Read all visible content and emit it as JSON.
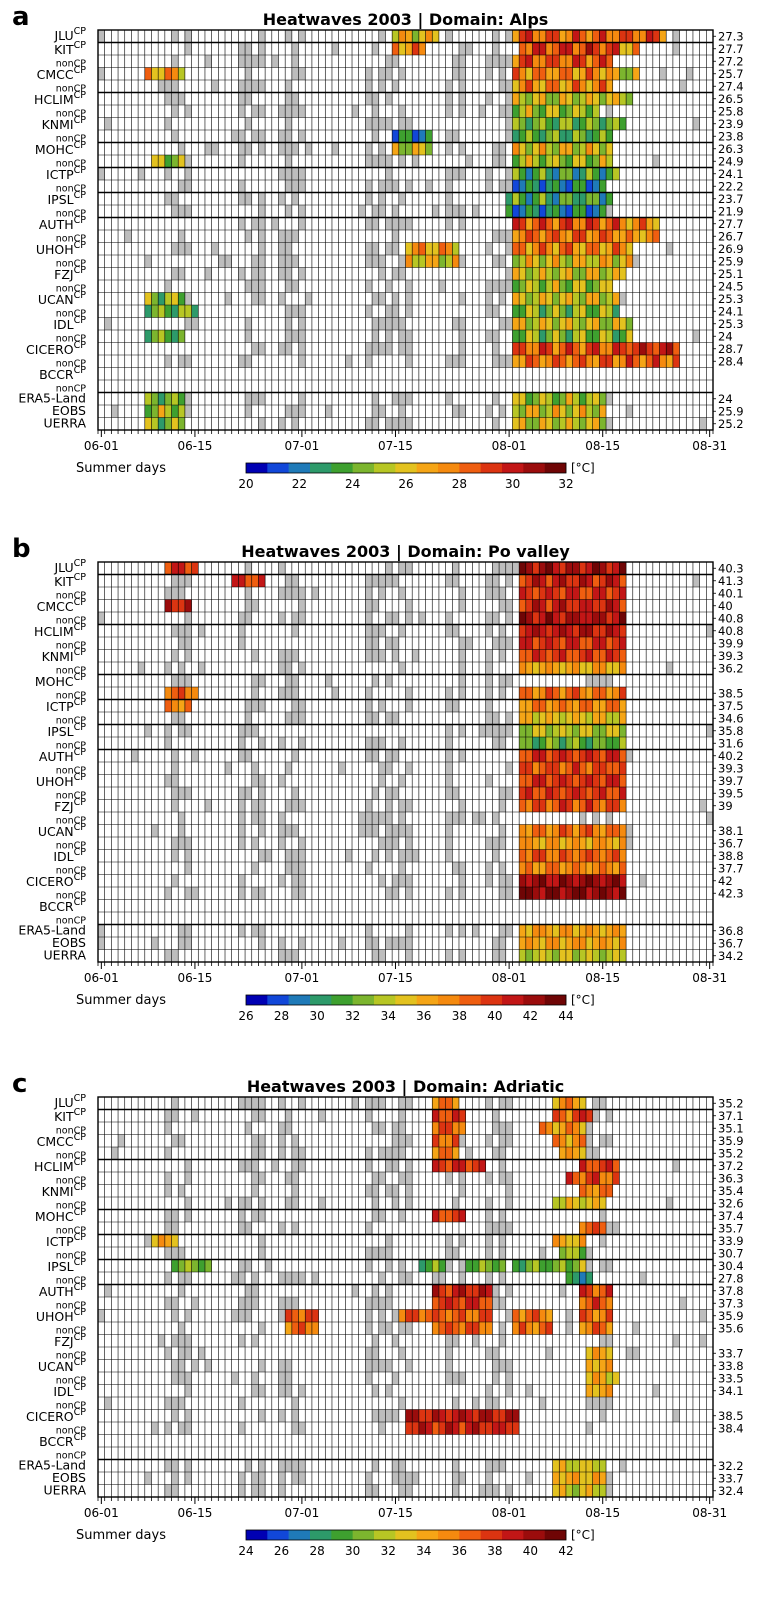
{
  "figure": {
    "colorbar_unit": "[°C]",
    "x_title": "Summer days",
    "x_ticks": [
      "06-01",
      "06-15",
      "07-01",
      "07-15",
      "08-01",
      "08-15",
      "08-31"
    ],
    "rows": [
      {
        "name": "JLU",
        "sup": "CP",
        "sub": ""
      },
      {
        "name": "KIT",
        "sup": "CP",
        "sub": "nonCP"
      },
      {
        "name": "CMCC",
        "sup": "CP",
        "sub": "nonCP"
      },
      {
        "name": "HCLIM",
        "sup": "CP",
        "sub": "nonCP"
      },
      {
        "name": "KNMI",
        "sup": "CP",
        "sub": "nonCP"
      },
      {
        "name": "MOHC",
        "sup": "CP",
        "sub": "nonCP"
      },
      {
        "name": "ICTP",
        "sup": "CP",
        "sub": "nonCP"
      },
      {
        "name": "IPSL",
        "sup": "CP",
        "sub": "nonCP"
      },
      {
        "name": "AUTH",
        "sup": "CP",
        "sub": "nonCP"
      },
      {
        "name": "UHOH",
        "sup": "CP",
        "sub": "nonCP"
      },
      {
        "name": "FZJ",
        "sup": "CP",
        "sub": "nonCP"
      },
      {
        "name": "UCAN",
        "sup": "CP",
        "sub": "nonCP"
      },
      {
        "name": "IDL",
        "sup": "CP",
        "sub": "nonCP"
      },
      {
        "name": "CICERO",
        "sup": "CP",
        "sub": "nonCP"
      },
      {
        "name": "BCCR",
        "sup": "CP",
        "sub": "nonCP"
      },
      {
        "name": "ERA5-Land",
        "sup": "",
        "sub": ""
      },
      {
        "name": "EOBS",
        "sup": "",
        "sub": ""
      },
      {
        "name": "UERRA",
        "sup": "",
        "sub": ""
      }
    ]
  },
  "chart_data": [
    {
      "type": "heatmap",
      "panel_letter": "a",
      "title": "Heatwaves 2003 | Domain: Alps",
      "colorbar_ticks": [
        "20",
        "22",
        "24",
        "26",
        "28",
        "30",
        "32"
      ],
      "vmin": 20,
      "vmax": 32,
      "right_values": [
        "27.3",
        "27.7",
        "27.2",
        "25.7",
        "27.4",
        "26.5",
        "25.8",
        "23.9",
        "23.8",
        "26.3",
        "24.9",
        "24.1",
        "22.2",
        "23.7",
        "21.9",
        "27.7",
        "26.7",
        "26.9",
        "25.9",
        "25.1",
        "24.5",
        "25.3",
        "24.1",
        "25.3",
        "24",
        "28.7",
        "28.4",
        "",
        "",
        "24",
        "25.9",
        "25.2"
      ],
      "events": [
        {
          "row": 0,
          "start": 44,
          "end": 50,
          "value": 26
        },
        {
          "row": 0,
          "start": 68,
          "end": 73,
          "value": 25.5
        },
        {
          "row": 0,
          "start": 62,
          "end": 84,
          "value": 28.5
        },
        {
          "row": 1,
          "start": 44,
          "end": 48,
          "value": 27.5
        },
        {
          "row": 1,
          "start": 76,
          "end": 80,
          "value": 27
        },
        {
          "row": 1,
          "start": 63,
          "end": 77,
          "value": 29
        },
        {
          "row": 2,
          "start": 62,
          "end": 76,
          "value": 28.5
        },
        {
          "row": 3,
          "start": 7,
          "end": 12,
          "value": 27
        },
        {
          "row": 3,
          "start": 75,
          "end": 80,
          "value": 25.5
        },
        {
          "row": 3,
          "start": 62,
          "end": 76,
          "value": 27.5
        },
        {
          "row": 4,
          "start": 62,
          "end": 76,
          "value": 27.5
        },
        {
          "row": 5,
          "start": 69,
          "end": 75,
          "value": 25.5
        },
        {
          "row": 5,
          "start": 62,
          "end": 79,
          "value": 25.5
        },
        {
          "row": 6,
          "start": 62,
          "end": 74,
          "value": 25
        },
        {
          "row": 7,
          "start": 62,
          "end": 78,
          "value": 24
        },
        {
          "row": 8,
          "start": 44,
          "end": 49,
          "value": 22.5
        },
        {
          "row": 8,
          "start": 62,
          "end": 76,
          "value": 24
        },
        {
          "row": 9,
          "start": 44,
          "end": 49,
          "value": 25.5
        },
        {
          "row": 9,
          "start": 69,
          "end": 74,
          "value": 25.5
        },
        {
          "row": 9,
          "start": 62,
          "end": 76,
          "value": 26
        },
        {
          "row": 10,
          "start": 8,
          "end": 12,
          "value": 25
        },
        {
          "row": 10,
          "start": 62,
          "end": 76,
          "value": 25
        },
        {
          "row": 11,
          "start": 62,
          "end": 77,
          "value": 23.5
        },
        {
          "row": 12,
          "start": 62,
          "end": 75,
          "value": 22.5
        },
        {
          "row": 13,
          "start": 67,
          "end": 73,
          "value": 22.5
        },
        {
          "row": 13,
          "start": 61,
          "end": 76,
          "value": 23.5
        },
        {
          "row": 14,
          "start": 61,
          "end": 75,
          "value": 22.5
        },
        {
          "row": 15,
          "start": 75,
          "end": 83,
          "value": 27.5
        },
        {
          "row": 15,
          "start": 62,
          "end": 77,
          "value": 28.5
        },
        {
          "row": 16,
          "start": 75,
          "end": 83,
          "value": 27
        },
        {
          "row": 16,
          "start": 62,
          "end": 77,
          "value": 28
        },
        {
          "row": 17,
          "start": 46,
          "end": 53,
          "value": 27
        },
        {
          "row": 17,
          "start": 67,
          "end": 76,
          "value": 27.5
        },
        {
          "row": 17,
          "start": 62,
          "end": 79,
          "value": 27.5
        },
        {
          "row": 18,
          "start": 46,
          "end": 53,
          "value": 26
        },
        {
          "row": 18,
          "start": 67,
          "end": 76,
          "value": 26.5
        },
        {
          "row": 18,
          "start": 62,
          "end": 79,
          "value": 26
        },
        {
          "row": 19,
          "start": 67,
          "end": 76,
          "value": 26.5
        },
        {
          "row": 19,
          "start": 62,
          "end": 78,
          "value": 25.5
        },
        {
          "row": 20,
          "start": 67,
          "end": 76,
          "value": 25
        },
        {
          "row": 20,
          "start": 62,
          "end": 76,
          "value": 25
        },
        {
          "row": 21,
          "start": 7,
          "end": 12,
          "value": 24.5
        },
        {
          "row": 21,
          "start": 62,
          "end": 77,
          "value": 25.5
        },
        {
          "row": 22,
          "start": 7,
          "end": 14,
          "value": 24
        },
        {
          "row": 22,
          "start": 62,
          "end": 77,
          "value": 24.5
        },
        {
          "row": 23,
          "start": 62,
          "end": 79,
          "value": 25.5
        },
        {
          "row": 24,
          "start": 7,
          "end": 12,
          "value": 24
        },
        {
          "row": 24,
          "start": 62,
          "end": 79,
          "value": 24.5
        },
        {
          "row": 25,
          "start": 69,
          "end": 86,
          "value": 29.5
        },
        {
          "row": 25,
          "start": 62,
          "end": 78,
          "value": 28.5
        },
        {
          "row": 26,
          "start": 69,
          "end": 86,
          "value": 28.5
        },
        {
          "row": 26,
          "start": 62,
          "end": 78,
          "value": 28
        },
        {
          "row": 29,
          "start": 7,
          "end": 12,
          "value": 24
        },
        {
          "row": 29,
          "start": 62,
          "end": 75,
          "value": 25
        },
        {
          "row": 30,
          "start": 7,
          "end": 12,
          "value": 25
        },
        {
          "row": 30,
          "start": 62,
          "end": 75,
          "value": 26
        },
        {
          "row": 31,
          "start": 7,
          "end": 12,
          "value": 24.5
        },
        {
          "row": 31,
          "start": 62,
          "end": 75,
          "value": 25.5
        }
      ]
    },
    {
      "type": "heatmap",
      "panel_letter": "b",
      "title": "Heatwaves 2003 | Domain: Po valley",
      "colorbar_ticks": [
        "26",
        "28",
        "30",
        "32",
        "34",
        "36",
        "38",
        "40",
        "42",
        "44"
      ],
      "vmin": 26,
      "vmax": 44,
      "right_values": [
        "40.3",
        "41.3",
        "40.1",
        "40",
        "40.8",
        "40.8",
        "39.9",
        "39.3",
        "36.2",
        "",
        "38.5",
        "37.5",
        "34.6",
        "35.8",
        "31.6",
        "40.2",
        "39.3",
        "39.7",
        "39.5",
        "39",
        "",
        "38.1",
        "36.7",
        "38.8",
        "37.7",
        "42",
        "42.3",
        "",
        "",
        "36.8",
        "36.7",
        "34.2"
      ],
      "events": [
        {
          "row": 0,
          "start": 10,
          "end": 14,
          "value": 40
        },
        {
          "row": 0,
          "start": 63,
          "end": 78,
          "value": 41.5
        },
        {
          "row": 1,
          "start": 20,
          "end": 24,
          "value": 40
        },
        {
          "row": 1,
          "start": 72,
          "end": 76,
          "value": 42
        },
        {
          "row": 1,
          "start": 63,
          "end": 78,
          "value": 40.5
        },
        {
          "row": 2,
          "start": 63,
          "end": 78,
          "value": 40
        },
        {
          "row": 3,
          "start": 10,
          "end": 13,
          "value": 40.5
        },
        {
          "row": 3,
          "start": 63,
          "end": 78,
          "value": 40.5
        },
        {
          "row": 4,
          "start": 63,
          "end": 78,
          "value": 41.5
        },
        {
          "row": 5,
          "start": 63,
          "end": 78,
          "value": 41
        },
        {
          "row": 6,
          "start": 63,
          "end": 78,
          "value": 40
        },
        {
          "row": 7,
          "start": 63,
          "end": 78,
          "value": 39.5
        },
        {
          "row": 8,
          "start": 63,
          "end": 78,
          "value": 36
        },
        {
          "row": 10,
          "start": 10,
          "end": 14,
          "value": 38.5
        },
        {
          "row": 10,
          "start": 63,
          "end": 78,
          "value": 38
        },
        {
          "row": 11,
          "start": 10,
          "end": 13,
          "value": 37.5
        },
        {
          "row": 11,
          "start": 63,
          "end": 78,
          "value": 37.5
        },
        {
          "row": 12,
          "start": 63,
          "end": 78,
          "value": 35
        },
        {
          "row": 13,
          "start": 63,
          "end": 78,
          "value": 34
        },
        {
          "row": 14,
          "start": 63,
          "end": 78,
          "value": 32
        },
        {
          "row": 15,
          "start": 63,
          "end": 78,
          "value": 40
        },
        {
          "row": 16,
          "start": 63,
          "end": 78,
          "value": 39
        },
        {
          "row": 17,
          "start": 63,
          "end": 78,
          "value": 40
        },
        {
          "row": 18,
          "start": 63,
          "end": 78,
          "value": 39.5
        },
        {
          "row": 19,
          "start": 63,
          "end": 78,
          "value": 39
        },
        {
          "row": 21,
          "start": 63,
          "end": 78,
          "value": 38
        },
        {
          "row": 22,
          "start": 63,
          "end": 78,
          "value": 36.5
        },
        {
          "row": 23,
          "start": 63,
          "end": 78,
          "value": 38.5
        },
        {
          "row": 24,
          "start": 63,
          "end": 78,
          "value": 37.5
        },
        {
          "row": 25,
          "start": 63,
          "end": 78,
          "value": 42
        },
        {
          "row": 26,
          "start": 63,
          "end": 78,
          "value": 42.5
        },
        {
          "row": 29,
          "start": 63,
          "end": 78,
          "value": 36.5
        },
        {
          "row": 30,
          "start": 63,
          "end": 78,
          "value": 36.5
        },
        {
          "row": 31,
          "start": 63,
          "end": 78,
          "value": 34
        }
      ]
    },
    {
      "type": "heatmap",
      "panel_letter": "c",
      "title": "Heatwaves 2003 | Domain: Adriatic",
      "colorbar_ticks": [
        "24",
        "26",
        "28",
        "30",
        "32",
        "34",
        "36",
        "38",
        "40",
        "42"
      ],
      "vmin": 24,
      "vmax": 42,
      "right_values": [
        "35.2",
        "37.1",
        "35.1",
        "35.9",
        "35.2",
        "37.2",
        "36.3",
        "35.4",
        "32.6",
        "37.4",
        "35.7",
        "33.9",
        "30.7",
        "30.4",
        "27.8",
        "37.8",
        "37.3",
        "35.9",
        "35.6",
        "",
        "33.7",
        "33.8",
        "33.5",
        "34.1",
        "",
        "38.5",
        "38.4",
        "",
        "",
        "32.2",
        "33.7",
        "32.4"
      ],
      "events": [
        {
          "row": 0,
          "start": 68,
          "end": 72,
          "value": 35
        },
        {
          "row": 0,
          "start": 50,
          "end": 53,
          "value": 35.5
        },
        {
          "row": 1,
          "start": 50,
          "end": 54,
          "value": 37.5
        },
        {
          "row": 1,
          "start": 68,
          "end": 72,
          "value": 36
        },
        {
          "row": 1,
          "start": 71,
          "end": 73,
          "value": 38
        },
        {
          "row": 2,
          "start": 50,
          "end": 54,
          "value": 36.5
        },
        {
          "row": 2,
          "start": 66,
          "end": 72,
          "value": 35
        },
        {
          "row": 3,
          "start": 50,
          "end": 53,
          "value": 36.5
        },
        {
          "row": 3,
          "start": 68,
          "end": 72,
          "value": 35
        },
        {
          "row": 4,
          "start": 50,
          "end": 53,
          "value": 35.5
        },
        {
          "row": 4,
          "start": 69,
          "end": 72,
          "value": 34.5
        },
        {
          "row": 5,
          "start": 50,
          "end": 57,
          "value": 38
        },
        {
          "row": 5,
          "start": 72,
          "end": 77,
          "value": 37.5
        },
        {
          "row": 6,
          "start": 72,
          "end": 77,
          "value": 36.5
        },
        {
          "row": 6,
          "start": 70,
          "end": 74,
          "value": 37
        },
        {
          "row": 7,
          "start": 72,
          "end": 76,
          "value": 35.5
        },
        {
          "row": 8,
          "start": 68,
          "end": 75,
          "value": 33
        },
        {
          "row": 9,
          "start": 50,
          "end": 54,
          "value": 37.5
        },
        {
          "row": 10,
          "start": 72,
          "end": 75,
          "value": 36.5
        },
        {
          "row": 11,
          "start": 8,
          "end": 11,
          "value": 34
        },
        {
          "row": 11,
          "start": 68,
          "end": 72,
          "value": 34
        },
        {
          "row": 12,
          "start": 69,
          "end": 72,
          "value": 31
        },
        {
          "row": 13,
          "start": 11,
          "end": 16,
          "value": 30.5
        },
        {
          "row": 13,
          "start": 48,
          "end": 51,
          "value": 30
        },
        {
          "row": 13,
          "start": 55,
          "end": 60,
          "value": 30.5
        },
        {
          "row": 13,
          "start": 62,
          "end": 68,
          "value": 30
        },
        {
          "row": 13,
          "start": 69,
          "end": 72,
          "value": 31
        },
        {
          "row": 14,
          "start": 70,
          "end": 73,
          "value": 28
        },
        {
          "row": 15,
          "start": 50,
          "end": 58,
          "value": 38.5
        },
        {
          "row": 15,
          "start": 72,
          "end": 76,
          "value": 37
        },
        {
          "row": 16,
          "start": 50,
          "end": 58,
          "value": 38
        },
        {
          "row": 16,
          "start": 72,
          "end": 76,
          "value": 37
        },
        {
          "row": 17,
          "start": 28,
          "end": 32,
          "value": 36.5
        },
        {
          "row": 17,
          "start": 45,
          "end": 58,
          "value": 36.5
        },
        {
          "row": 17,
          "start": 62,
          "end": 67,
          "value": 36
        },
        {
          "row": 17,
          "start": 72,
          "end": 76,
          "value": 36
        },
        {
          "row": 18,
          "start": 28,
          "end": 32,
          "value": 36
        },
        {
          "row": 18,
          "start": 50,
          "end": 58,
          "value": 36.5
        },
        {
          "row": 18,
          "start": 62,
          "end": 67,
          "value": 36
        },
        {
          "row": 18,
          "start": 72,
          "end": 76,
          "value": 36
        },
        {
          "row": 20,
          "start": 73,
          "end": 76,
          "value": 34
        },
        {
          "row": 21,
          "start": 73,
          "end": 76,
          "value": 34
        },
        {
          "row": 22,
          "start": 73,
          "end": 77,
          "value": 33.5
        },
        {
          "row": 23,
          "start": 73,
          "end": 76,
          "value": 34
        },
        {
          "row": 25,
          "start": 46,
          "end": 62,
          "value": 39
        },
        {
          "row": 26,
          "start": 46,
          "end": 62,
          "value": 38.5
        },
        {
          "row": 29,
          "start": 68,
          "end": 75,
          "value": 32.5
        },
        {
          "row": 30,
          "start": 68,
          "end": 75,
          "value": 34
        },
        {
          "row": 31,
          "start": 68,
          "end": 75,
          "value": 32.5
        }
      ]
    }
  ]
}
